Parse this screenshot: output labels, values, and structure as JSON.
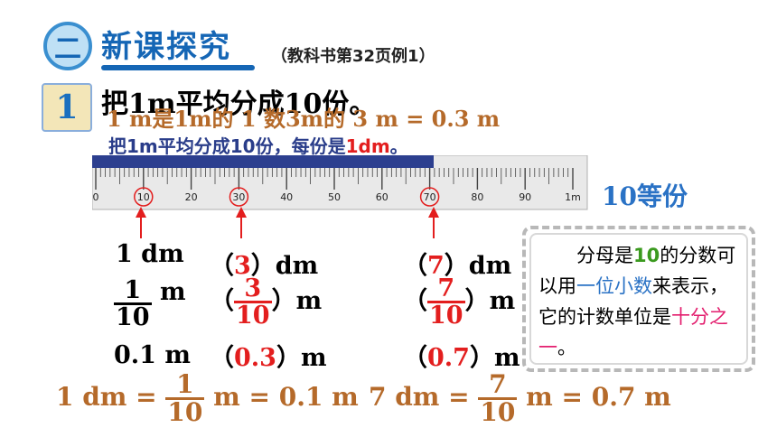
{
  "header": {
    "section_number": "二",
    "section_title": "新课探究",
    "reference": "（教科书第32页例1）"
  },
  "problem": {
    "number": "1",
    "text": "把1m平均分成10份。"
  },
  "overlapping_text": {
    "frac_line": "1 m是1m的 1 数3m的 3 m = 0.3 m",
    "caption_part1": "把1m平均分成10份，每份是",
    "caption_red": "1dm",
    "caption_end": "。"
  },
  "ruler": {
    "labels": [
      "0",
      "10",
      "20",
      "30",
      "40",
      "50",
      "60",
      "70",
      "80",
      "90",
      "1m"
    ],
    "circled": [
      "10",
      "30",
      "70"
    ],
    "note": "10等份"
  },
  "rows": {
    "row1": {
      "col1": "1 dm",
      "open": "（",
      "col2_value": "3",
      "col2_close": "）dm",
      "col3_value": "7",
      "col3_close": "）dm"
    },
    "row2": {
      "col1_num": "1",
      "col1_den": "10",
      "unit": "m",
      "col2_num": "3",
      "col2_den": "10",
      "col3_num": "7",
      "col3_den": "10"
    },
    "row3": {
      "col1": "0.1 m",
      "col2_value": "0.3",
      "col3_value": "0.7",
      "unit": "）m"
    }
  },
  "equations": {
    "left_a": "1 dm =",
    "left_num": "1",
    "left_den": "10",
    "left_b": "m = 0.1 m",
    "right_a": "7 dm =",
    "right_num": "7",
    "right_den": "10",
    "right_b": "m = 0.7 m"
  },
  "note": {
    "indent": "分母是",
    "green": "10",
    "part1": "的分数可以用",
    "blue": "一位小数",
    "part2": "来表示，它的计数单位是",
    "pink": "十分之一",
    "end": "。"
  },
  "colors": {
    "primary_blue": "#1566b5",
    "red": "#e31e1e",
    "brown": "#b56a2a",
    "green": "#3b9a1f"
  }
}
